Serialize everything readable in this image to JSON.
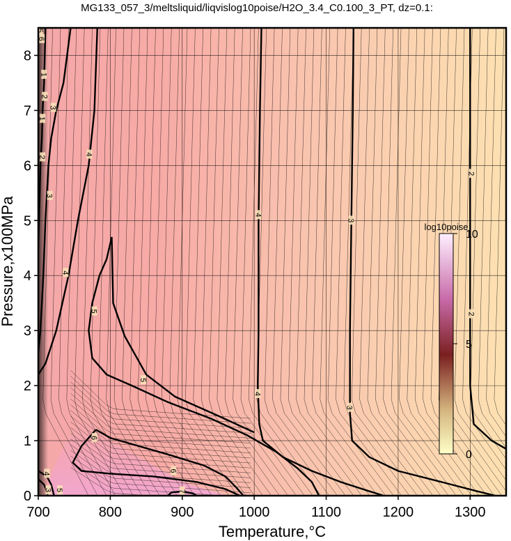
{
  "chart_data": {
    "type": "heatmap",
    "title": "MG133_057_3/meltsliquid/liqvislog10poise/H2O_3.4_C0.100_3_PT, dz=0.1:",
    "xlabel": "Temperature,°C",
    "ylabel": "Pressure,x100MPa",
    "xlim": [
      700,
      1350
    ],
    "ylim": [
      0,
      8.5
    ],
    "x_ticks": [
      700,
      800,
      900,
      1000,
      1100,
      1200,
      1300
    ],
    "y_ticks": [
      0,
      1,
      2,
      3,
      4,
      5,
      6,
      7,
      8
    ],
    "grid": true,
    "colorbar": {
      "label": "log10poise",
      "ticks": [
        0,
        5,
        10
      ],
      "range": [
        0,
        10
      ],
      "colors": [
        "#ffffc8",
        "#c8a070",
        "#7a2020",
        "#d070b0",
        "#ffe8ff"
      ]
    },
    "background_gradient": {
      "left": "#f5b0b0",
      "middle": "#f9c8b0",
      "right": "#fde0b0"
    },
    "major_contours": [
      {
        "level": "2",
        "points": [
          [
            1300,
            8.5
          ],
          [
            1300,
            7.0
          ],
          [
            1300,
            5.0
          ],
          [
            1300,
            2.0
          ],
          [
            1305,
            1.3
          ],
          [
            1330,
            1.0
          ],
          [
            1350,
            0.85
          ]
        ]
      },
      {
        "level": "3",
        "points": [
          [
            1138,
            8.5
          ],
          [
            1137,
            7.0
          ],
          [
            1135,
            5.0
          ],
          [
            1133,
            3.0
          ],
          [
            1133,
            1.5
          ],
          [
            1136,
            1.0
          ],
          [
            1160,
            0.7
          ],
          [
            1200,
            0.45
          ],
          [
            1260,
            0.25
          ],
          [
            1310,
            0.08
          ],
          [
            1335,
            0.0
          ]
        ]
      },
      {
        "level": "4",
        "points": [
          [
            1010,
            8.5
          ],
          [
            1008,
            7.0
          ],
          [
            1006,
            5.0
          ],
          [
            1006,
            3.0
          ],
          [
            1005,
            2.0
          ],
          [
            1007,
            1.3
          ],
          [
            1012,
            1.0
          ],
          [
            1040,
            0.7
          ],
          [
            1080,
            0.45
          ],
          [
            1120,
            0.25
          ],
          [
            1160,
            0.08
          ],
          [
            1180,
            0.0
          ]
        ]
      },
      {
        "level": "4",
        "points": [
          [
            782,
            8.5
          ],
          [
            778,
            7.0
          ],
          [
            770,
            6.0
          ],
          [
            755,
            5.0
          ],
          [
            742,
            4.0
          ],
          [
            725,
            3.0
          ],
          [
            710,
            2.4
          ],
          [
            700,
            2.2
          ]
        ]
      },
      {
        "level": "5",
        "points": [
          [
            802,
            4.7
          ],
          [
            795,
            4.3
          ],
          [
            785,
            4.0
          ],
          [
            775,
            3.5
          ],
          [
            770,
            3.0
          ],
          [
            775,
            2.5
          ],
          [
            795,
            2.2
          ],
          [
            830,
            2.0
          ],
          [
            880,
            1.7
          ],
          [
            940,
            1.4
          ],
          [
            990,
            1.1
          ],
          [
            1030,
            0.8
          ],
          [
            1060,
            0.5
          ],
          [
            1080,
            0.25
          ],
          [
            1090,
            0.0
          ]
        ]
      },
      {
        "level": "5",
        "points": [
          [
            802,
            4.7
          ],
          [
            804,
            3.5
          ],
          [
            820,
            2.9
          ],
          [
            850,
            2.2
          ],
          [
            890,
            1.8
          ],
          [
            950,
            1.45
          ],
          [
            1000,
            1.15
          ]
        ]
      },
      {
        "level": "6",
        "points": [
          [
            780,
            1.2
          ],
          [
            760,
            0.9
          ],
          [
            748,
            0.6
          ],
          [
            760,
            0.45
          ],
          [
            800,
            0.4
          ],
          [
            860,
            0.35
          ],
          [
            920,
            0.25
          ],
          [
            960,
            0.12
          ],
          [
            980,
            0.0
          ]
        ]
      },
      {
        "level": "6",
        "points": [
          [
            780,
            1.2
          ],
          [
            800,
            1.05
          ],
          [
            840,
            0.9
          ],
          [
            880,
            0.75
          ],
          [
            930,
            0.55
          ],
          [
            960,
            0.35
          ],
          [
            975,
            0.15
          ],
          [
            985,
            0.0
          ]
        ]
      },
      {
        "level": "7",
        "points": [
          [
            880,
            0.0
          ],
          [
            885,
            0.06
          ],
          [
            900,
            0.08
          ],
          [
            915,
            0.04
          ],
          [
            920,
            0.0
          ]
        ]
      },
      {
        "level": "3",
        "points": [
          [
            745,
            8.5
          ],
          [
            735,
            7.5
          ],
          [
            725,
            7.0
          ],
          [
            718,
            6.5
          ],
          [
            714,
            6.0
          ],
          [
            710,
            5.0
          ],
          [
            707,
            4.0
          ],
          [
            703,
            3.0
          ],
          [
            700,
            2.6
          ]
        ]
      },
      {
        "level": "2",
        "points": [
          [
            710,
            8.5
          ],
          [
            708,
            7.5
          ],
          [
            706,
            7.0
          ],
          [
            705,
            6.5
          ],
          [
            703,
            6.0
          ],
          [
            701,
            5.0
          ],
          [
            700,
            4.5
          ]
        ]
      },
      {
        "level": "4",
        "points": [
          [
            700,
            0.45
          ],
          [
            712,
            0.35
          ],
          [
            718,
            0.2
          ],
          [
            722,
            0.0
          ]
        ]
      },
      {
        "level": "3",
        "points": [
          [
            700,
            0.3
          ],
          [
            708,
            0.2
          ],
          [
            712,
            0.08
          ],
          [
            713,
            0.0
          ]
        ]
      }
    ],
    "contour_labels": [
      {
        "text": "2",
        "x": 1302,
        "y": 5.85
      },
      {
        "text": "2",
        "x": 1302,
        "y": 3.3
      },
      {
        "text": "3",
        "x": 1135,
        "y": 5.0
      },
      {
        "text": "3",
        "x": 1133,
        "y": 1.6
      },
      {
        "text": "4",
        "x": 1006,
        "y": 5.1
      },
      {
        "text": "4",
        "x": 1005,
        "y": 1.85
      },
      {
        "text": "4",
        "x": 771,
        "y": 6.2
      },
      {
        "text": "4",
        "x": 738,
        "y": 4.05
      },
      {
        "text": "5",
        "x": 778,
        "y": 3.35
      },
      {
        "text": "5",
        "x": 846,
        "y": 2.1
      },
      {
        "text": "6",
        "x": 778,
        "y": 1.05
      },
      {
        "text": "6",
        "x": 888,
        "y": 0.45
      },
      {
        "text": "3",
        "x": 721,
        "y": 7.05
      },
      {
        "text": "3",
        "x": 716,
        "y": 5.45
      },
      {
        "text": "2",
        "x": 709,
        "y": 7.25
      },
      {
        "text": "2",
        "x": 706,
        "y": 6.15
      },
      {
        "text": "1",
        "x": 706,
        "y": 6.85
      },
      {
        "text": "1",
        "x": 708,
        "y": 7.65
      },
      {
        "text": "5",
        "x": 703,
        "y": 8.45
      },
      {
        "text": "6",
        "x": 705,
        "y": 8.3
      },
      {
        "text": "4",
        "x": 712,
        "y": 0.4
      },
      {
        "text": "3",
        "x": 714,
        "y": 0.1
      },
      {
        "text": "5",
        "x": 730,
        "y": 0.1
      },
      {
        "text": "7",
        "x": 900,
        "y": 0.08
      }
    ]
  }
}
